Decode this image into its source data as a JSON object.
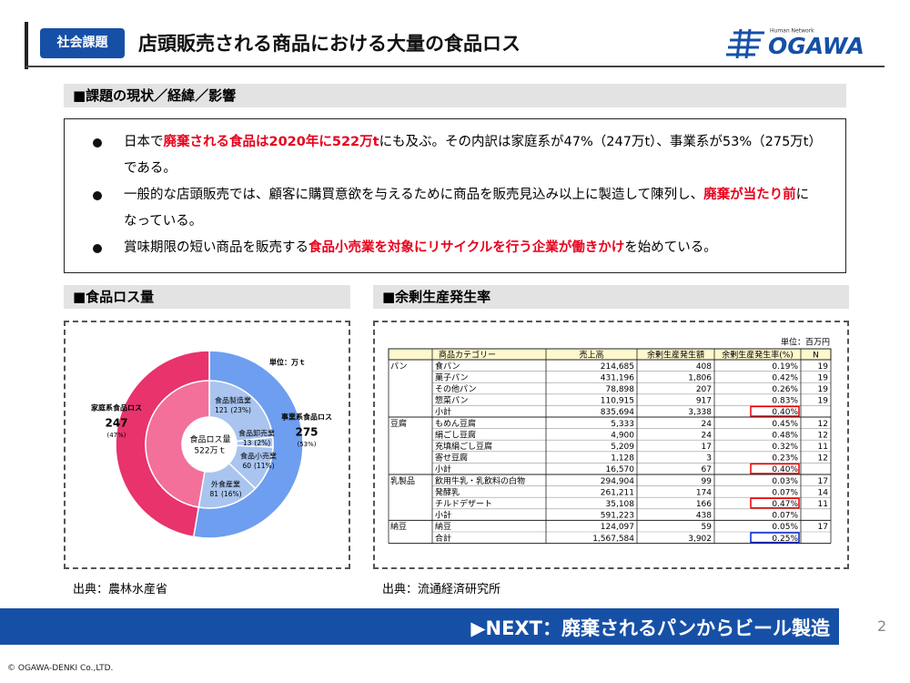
{
  "header": {
    "tag": "社会課題",
    "title": "店頭販売される商品における大量の食品ロス",
    "logo_small": "Human Network",
    "logo": "OGAWA"
  },
  "issues": {
    "heading": "■課題の現状／経緯／影響",
    "bullets": [
      [
        "日本で",
        {
          "text": "廃棄される食品は2020年に522万t",
          "color": "#e8001c"
        },
        "にも及ぶ。その内訳は家庭系が47%（247万t）、事業系が53%（275万t）である。"
      ],
      [
        "一般的な店頭販売では、顧客に購買意欲を与えるために商品を販売見込み以上に製造して陳列し、",
        {
          "text": "廃棄が当たり前",
          "color": "#e8001c"
        },
        "になっている。"
      ],
      [
        "賞味期限の短い商品を販売する",
        {
          "text": "食品小売業を対象にリサイクルを行う企業が働きかけ",
          "color": "#e8001c"
        },
        "を始めている。"
      ]
    ]
  },
  "loss": {
    "heading": "■食品ロス量",
    "source": "出典：農林水産省"
  },
  "chart_data": {
    "type": "donut",
    "unit": "単位：万ｔ",
    "center_label": "食品ロス量",
    "center_value": "522万ｔ",
    "rings": [
      {
        "categories": [
          "事業系食品ロス",
          "家庭系食品ロス"
        ],
        "values": [
          275,
          247
        ],
        "share_labels": [
          "(53%)",
          "(47%)"
        ],
        "colors": [
          "#6e9ef0",
          "#e8336d"
        ]
      },
      {
        "categories": [
          "食品製造業",
          "食品卸売業",
          "食品小売業",
          "外食産業",
          null
        ],
        "values": [
          121,
          13,
          60,
          81,
          247
        ],
        "share_labels": [
          "(23%)",
          "(2%)",
          "(11%)",
          "(16%)",
          null
        ],
        "colors": [
          "#a9c4ef",
          "#a9c4ef",
          "#a9c4ef",
          "#a9c4ef",
          "#f2709a"
        ]
      }
    ]
  },
  "surplus": {
    "heading": "■余剰生産発生率",
    "source": "出典：流通経済研究所"
  },
  "table": {
    "unit": "単位：百万円",
    "header": [
      "商品カテゴリー",
      "売上高",
      "余剰生産発生額",
      "余剰生産発生率(%)",
      "N"
    ],
    "groups": [
      {
        "name": "パン",
        "rows": [
          [
            "食パン",
            "214,685",
            "408",
            "0.19%",
            "19"
          ],
          [
            "菓子パン",
            "431,196",
            "1,806",
            "0.42%",
            "19"
          ],
          [
            "その他パン",
            "78,898",
            "207",
            "0.26%",
            "19"
          ],
          [
            "惣菜パン",
            "110,915",
            "917",
            "0.83%",
            "19"
          ],
          [
            "小計",
            "835,694",
            "3,338",
            "0.40%"
          ]
        ]
      },
      {
        "name": "豆腐",
        "rows": [
          [
            "もめん豆腐",
            "5,333",
            "24",
            "0.45%",
            "12"
          ],
          [
            "絹ごし豆腐",
            "4,900",
            "24",
            "0.48%",
            "12"
          ],
          [
            "充填絹ごし豆腐",
            "5,209",
            "17",
            "0.32%",
            "11"
          ],
          [
            "寄せ豆腐",
            "1,128",
            "3",
            "0.23%",
            "12"
          ],
          [
            "小計",
            "16,570",
            "67",
            "0.40%"
          ]
        ]
      },
      {
        "name": "乳製品",
        "rows": [
          [
            "飲用牛乳・乳飲料の白物",
            "294,904",
            "99",
            "0.03%",
            "17"
          ],
          [
            "発酵乳",
            "261,211",
            "174",
            "0.07%",
            "14"
          ],
          [
            "チルドデザート",
            "35,108",
            "166",
            "0.47%",
            "11"
          ],
          [
            "小計",
            "591,223",
            "438",
            "0.07%"
          ]
        ]
      },
      {
        "name": "納豆",
        "rows": [
          [
            "納豆",
            "124,097",
            "59",
            "0.05%",
            "17"
          ],
          [
            "合計",
            "1,567,584",
            "3,902",
            "0.25%"
          ]
        ]
      }
    ]
  },
  "footer": {
    "next": "▶NEXT：廃棄されるパンからビール製造",
    "page": "2",
    "copyright": "© OGAWA-DENKI Co.,LTD."
  }
}
